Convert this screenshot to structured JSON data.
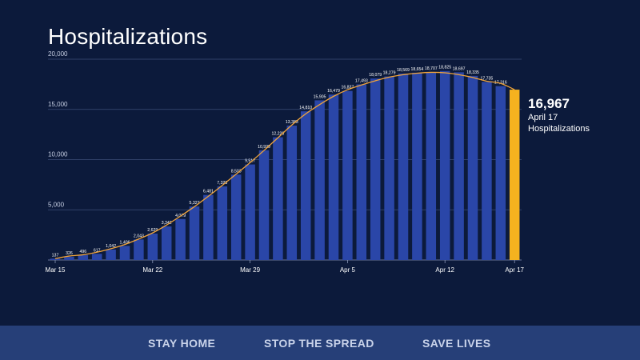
{
  "header": {
    "title": "Hospitalizations"
  },
  "callout": {
    "value": "16,967",
    "date": "April 17",
    "label": "Hospitalizations"
  },
  "footer": {
    "slogans": [
      "STAY HOME",
      "STOP THE SPREAD",
      "SAVE LIVES"
    ]
  },
  "colors": {
    "background": "#0c1a3b",
    "bar": "#2a46a8",
    "highlight_bar": "#f5b21f",
    "trend_line": "#f0a33a",
    "footer": "#263f78"
  },
  "chart_data": {
    "type": "bar",
    "title": "Hospitalizations",
    "x_tick_labels": [
      "Mar 15",
      "Mar 22",
      "Mar 29",
      "Apr 5",
      "Apr 12",
      "Apr 17"
    ],
    "x_tick_indices": [
      0,
      7,
      14,
      21,
      28,
      33
    ],
    "categories": [
      "Mar 15",
      "Mar 16",
      "Mar 17",
      "Mar 18",
      "Mar 19",
      "Mar 20",
      "Mar 21",
      "Mar 22",
      "Mar 23",
      "Mar 24",
      "Mar 25",
      "Mar 26",
      "Mar 27",
      "Mar 28",
      "Mar 29",
      "Mar 30",
      "Mar 31",
      "Apr 1",
      "Apr 2",
      "Apr 3",
      "Apr 4",
      "Apr 5",
      "Apr 6",
      "Apr 7",
      "Apr 8",
      "Apr 9",
      "Apr 10",
      "Apr 11",
      "Apr 12",
      "Apr 13",
      "Apr 14",
      "Apr 15",
      "Apr 16",
      "Apr 17"
    ],
    "values": [
      137,
      326,
      496,
      617,
      1042,
      1406,
      2043,
      2629,
      3342,
      4079,
      5327,
      6481,
      7328,
      8503,
      9517,
      10929,
      12226,
      13383,
      14810,
      15905,
      16479,
      16837,
      17493,
      18079,
      18279,
      18569,
      18654,
      18707,
      18825,
      18697,
      18335,
      17735,
      17316,
      16967
    ],
    "bar_labels": [
      "137",
      "326",
      "496",
      "617",
      "1,042",
      "1,406",
      "2,043",
      "2,629",
      "3,342",
      "4,079",
      "5,327",
      "6,481",
      "7,328",
      "8,503",
      "9,517",
      "10,929",
      "12,226",
      "13,383",
      "14,810",
      "15,905",
      "16,479",
      "16,837",
      "17,493",
      "18,079",
      "18,279",
      "18,569",
      "18,654",
      "18,707",
      "18,825",
      "18,697",
      "18,335",
      "17,735",
      "17,316",
      ""
    ],
    "highlight_index": 33,
    "y_ticks": [
      0,
      5000,
      10000,
      15000,
      20000
    ],
    "y_tick_labels": [
      "",
      "5,000",
      "10,000",
      "15,000",
      "20,000"
    ],
    "ylim": [
      0,
      20000
    ],
    "grid": true,
    "trend_line": true
  }
}
